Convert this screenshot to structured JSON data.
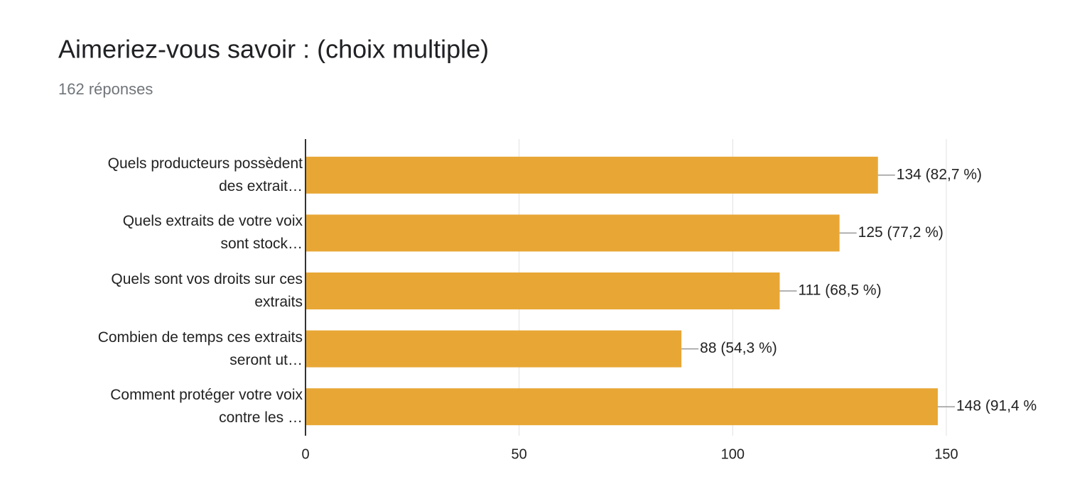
{
  "chart_data": {
    "type": "bar",
    "orientation": "horizontal",
    "title": "Aimeriez-vous savoir : (choix multiple)",
    "subtitle": "162 réponses",
    "categories": [
      "Quels producteurs possèdent\ndes extrait…",
      "Quels extraits de votre voix\nsont stock…",
      "Quels sont vos droits sur ces\nextraits",
      "Combien de temps ces extraits\nseront ut…",
      "Comment protéger votre voix\ncontre les …"
    ],
    "values": [
      134,
      125,
      111,
      88,
      148
    ],
    "value_labels": [
      "134 (82,7 %)",
      "125 (77,2 %)",
      "111 (68,5 %)",
      "88 (54,3 %)",
      "148 (91,4 %"
    ],
    "color": "#e8a735",
    "xlim": [
      0,
      150
    ],
    "xticks": [
      0,
      50,
      100,
      150
    ],
    "grid": true
  }
}
